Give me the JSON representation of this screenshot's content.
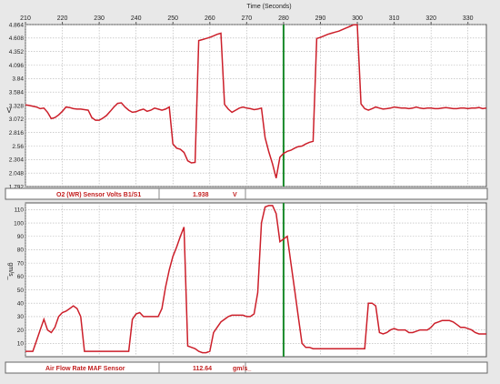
{
  "x_axis_title": "Time (Seconds)",
  "chart_data": [
    {
      "type": "line",
      "ylabel": "V",
      "xlim": [
        210,
        335
      ],
      "ylim": [
        1.792,
        4.864
      ],
      "x_ticks": [
        210,
        220,
        230,
        240,
        250,
        260,
        270,
        280,
        290,
        300,
        310,
        320,
        330
      ],
      "y_ticks": [
        "1.792",
        "2.048",
        "2.304",
        "2.56",
        "2.816",
        "3.072",
        "3.328",
        "3.584",
        "3.84",
        "4.096",
        "4.352",
        "4.608",
        "4.864"
      ],
      "cursor_x": 280,
      "series": [
        {
          "color": "#cc1f2a",
          "x": [
            210,
            211,
            213,
            214,
            215,
            216,
            217,
            218,
            219,
            220,
            221,
            222,
            223,
            224,
            225,
            226,
            227,
            228,
            229,
            230,
            231,
            232,
            233,
            234,
            235,
            236,
            237,
            238,
            239,
            240,
            241,
            242,
            243,
            244,
            245,
            246,
            247,
            248,
            249,
            250,
            251,
            252,
            253,
            254,
            255,
            256,
            257,
            258,
            259,
            260,
            261,
            262,
            263,
            264,
            265,
            266,
            267,
            268,
            269,
            270,
            271,
            272,
            273,
            274,
            275,
            276,
            277,
            278,
            279,
            280,
            281,
            282,
            283,
            284,
            285,
            286,
            287,
            288,
            289,
            290,
            291,
            292,
            293,
            294,
            295,
            296,
            297,
            298,
            299,
            300,
            301,
            302,
            303,
            304,
            305,
            306,
            307,
            308,
            309,
            310,
            311,
            312,
            313,
            314,
            315,
            316,
            317,
            318,
            319,
            320,
            321,
            322,
            323,
            324,
            325,
            326,
            327,
            328,
            329,
            330,
            331,
            332,
            333,
            334,
            335
          ],
          "values": [
            3.34,
            3.33,
            3.3,
            3.27,
            3.28,
            3.2,
            3.08,
            3.1,
            3.15,
            3.22,
            3.3,
            3.29,
            3.27,
            3.26,
            3.26,
            3.25,
            3.24,
            3.1,
            3.05,
            3.05,
            3.09,
            3.14,
            3.22,
            3.3,
            3.37,
            3.38,
            3.3,
            3.24,
            3.2,
            3.21,
            3.24,
            3.26,
            3.22,
            3.24,
            3.28,
            3.26,
            3.24,
            3.26,
            3.3,
            2.6,
            2.52,
            2.5,
            2.44,
            2.28,
            2.24,
            2.25,
            4.56,
            4.58,
            4.6,
            4.62,
            4.65,
            4.68,
            4.7,
            3.35,
            3.26,
            3.2,
            3.24,
            3.28,
            3.3,
            3.28,
            3.27,
            3.25,
            3.26,
            3.28,
            2.72,
            2.45,
            2.22,
            1.95,
            2.35,
            2.42,
            2.46,
            2.48,
            2.52,
            2.55,
            2.56,
            2.6,
            2.63,
            2.65,
            4.6,
            4.62,
            4.65,
            4.68,
            4.7,
            4.72,
            4.74,
            4.77,
            4.8,
            4.83,
            4.86,
            4.86,
            3.36,
            3.27,
            3.24,
            3.27,
            3.3,
            3.28,
            3.26,
            3.27,
            3.28,
            3.3,
            3.29,
            3.28,
            3.28,
            3.27,
            3.28,
            3.3,
            3.28,
            3.27,
            3.28,
            3.28,
            3.27,
            3.27,
            3.28,
            3.29,
            3.28,
            3.27,
            3.27,
            3.28,
            3.28,
            3.27,
            3.28,
            3.28,
            3.29,
            3.27,
            3.28
          ]
        }
      ],
      "footer": {
        "name": "O2 (WR) Sensor Volts B1/S1",
        "value": "1.938",
        "unit": "V"
      }
    },
    {
      "type": "line",
      "ylabel": "gm/s_",
      "xlim": [
        210,
        335
      ],
      "ylim": [
        0,
        115
      ],
      "x_ticks": [
        210,
        220,
        230,
        240,
        250,
        260,
        270,
        280,
        290,
        300,
        310,
        320,
        330
      ],
      "y_ticks": [
        "10",
        "20",
        "30",
        "40",
        "50",
        "60",
        "70",
        "80",
        "90",
        "100",
        "110"
      ],
      "cursor_x": 280,
      "series": [
        {
          "color": "#cc1f2a",
          "x": [
            210,
            211,
            212,
            213,
            214,
            215,
            216,
            217,
            218,
            219,
            220,
            221,
            222,
            223,
            224,
            225,
            226,
            227,
            228,
            229,
            230,
            231,
            232,
            233,
            234,
            235,
            236,
            237,
            238,
            239,
            240,
            241,
            242,
            243,
            244,
            245,
            246,
            247,
            248,
            249,
            250,
            251,
            252,
            253,
            254,
            255,
            256,
            257,
            258,
            259,
            260,
            261,
            262,
            263,
            264,
            265,
            266,
            267,
            268,
            269,
            270,
            271,
            272,
            273,
            274,
            275,
            276,
            277,
            278,
            279,
            280,
            281,
            282,
            283,
            284,
            285,
            286,
            287,
            288,
            289,
            290,
            291,
            292,
            293,
            294,
            295,
            296,
            297,
            298,
            299,
            300,
            301,
            302,
            303,
            304,
            305,
            306,
            307,
            308,
            309,
            310,
            311,
            312,
            313,
            314,
            315,
            316,
            317,
            318,
            319,
            320,
            321,
            322,
            323,
            324,
            325,
            326,
            327,
            328,
            329,
            330,
            331,
            332,
            333,
            334,
            335
          ],
          "values": [
            4,
            4,
            4,
            12,
            20,
            28,
            20,
            18,
            22,
            30,
            33,
            34,
            36,
            38,
            36,
            30,
            4,
            4,
            4,
            4,
            4,
            4,
            4,
            4,
            4,
            4,
            4,
            4,
            4,
            28,
            32,
            33,
            30,
            30,
            30,
            30,
            30,
            36,
            52,
            65,
            75,
            82,
            90,
            97,
            8,
            7,
            6,
            4,
            3,
            3,
            4,
            18,
            22,
            26,
            28,
            30,
            31,
            31,
            31,
            31,
            30,
            30,
            32,
            48,
            100,
            112,
            113,
            113,
            107,
            86,
            88,
            90,
            70,
            50,
            30,
            10,
            7,
            7,
            6,
            6,
            6,
            6,
            6,
            6,
            6,
            6,
            6,
            6,
            6,
            6,
            6,
            6,
            6,
            40,
            40,
            38,
            18,
            17,
            18,
            20,
            21,
            20,
            20,
            20,
            18,
            18,
            19,
            20,
            20,
            20,
            22,
            25,
            26,
            27,
            27,
            27,
            26,
            24,
            22,
            22,
            21,
            20,
            18,
            17,
            17,
            17
          ]
        }
      ],
      "footer": {
        "name": "Air Flow Rate MAF Sensor",
        "value": "112.64",
        "unit": "gm/s_"
      }
    }
  ]
}
